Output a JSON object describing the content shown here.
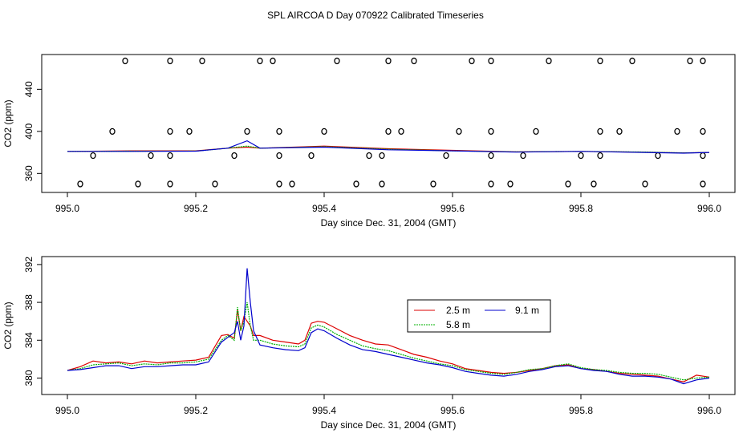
{
  "page_title": "SPL AIRCOA D  Day 070922  Calibrated Timeseries",
  "colors": {
    "red": "#dd0000",
    "green": "#00b000",
    "blue": "#0000cc",
    "black": "#000000"
  },
  "chart_data": [
    {
      "type": "scatter",
      "title": "",
      "xlabel": "Day since Dec. 31, 2004 (GMT)",
      "ylabel": "CO2 (ppm)",
      "xlim": [
        995.0,
        996.0
      ],
      "ylim": [
        345,
        470
      ],
      "xticks": [
        995.0,
        995.2,
        995.4,
        995.6,
        995.8,
        996.0
      ],
      "xtick_labels": [
        "995.0",
        "995.2",
        "995.4",
        "995.6",
        "995.8",
        "996.0"
      ],
      "yticks": [
        360,
        400,
        440
      ],
      "ytick_labels": [
        "360",
        "400",
        "440"
      ],
      "points": [
        [
          995.09,
          467
        ],
        [
          995.16,
          467
        ],
        [
          995.21,
          467
        ],
        [
          995.3,
          467
        ],
        [
          995.32,
          467
        ],
        [
          995.42,
          467
        ],
        [
          995.5,
          467
        ],
        [
          995.54,
          467
        ],
        [
          995.63,
          467
        ],
        [
          995.66,
          467
        ],
        [
          995.75,
          467
        ],
        [
          995.83,
          467
        ],
        [
          995.88,
          467
        ],
        [
          995.97,
          467
        ],
        [
          995.99,
          467
        ],
        [
          995.07,
          400
        ],
        [
          995.16,
          400
        ],
        [
          995.19,
          400
        ],
        [
          995.28,
          400
        ],
        [
          995.33,
          400
        ],
        [
          995.4,
          400
        ],
        [
          995.5,
          400
        ],
        [
          995.52,
          400
        ],
        [
          995.61,
          400
        ],
        [
          995.66,
          400
        ],
        [
          995.73,
          400
        ],
        [
          995.83,
          400
        ],
        [
          995.86,
          400
        ],
        [
          995.95,
          400
        ],
        [
          995.99,
          400
        ],
        [
          995.04,
          377
        ],
        [
          995.13,
          377
        ],
        [
          995.16,
          377
        ],
        [
          995.26,
          377
        ],
        [
          995.33,
          377
        ],
        [
          995.38,
          377
        ],
        [
          995.47,
          377
        ],
        [
          995.49,
          377
        ],
        [
          995.59,
          377
        ],
        [
          995.66,
          377
        ],
        [
          995.71,
          377
        ],
        [
          995.8,
          377
        ],
        [
          995.83,
          377
        ],
        [
          995.92,
          377
        ],
        [
          995.99,
          377
        ],
        [
          995.02,
          350
        ],
        [
          995.11,
          350
        ],
        [
          995.16,
          350
        ],
        [
          995.23,
          350
        ],
        [
          995.33,
          350
        ],
        [
          995.35,
          350
        ],
        [
          995.45,
          350
        ],
        [
          995.49,
          350
        ],
        [
          995.57,
          350
        ],
        [
          995.66,
          350
        ],
        [
          995.69,
          350
        ],
        [
          995.78,
          350
        ],
        [
          995.82,
          350
        ],
        [
          995.9,
          350
        ],
        [
          995.99,
          350
        ]
      ],
      "series": [
        {
          "name": "2.5 m",
          "color": "#dd0000",
          "x": [
            995.0,
            995.1,
            995.2,
            995.25,
            995.28,
            995.3,
            995.4,
            995.5,
            995.6,
            995.7,
            995.8,
            995.9,
            995.96,
            996.0
          ],
          "values": [
            381,
            381.5,
            381.5,
            384,
            385,
            384,
            386,
            383.5,
            382,
            380.5,
            381,
            380.2,
            379.5,
            380
          ]
        },
        {
          "name": "5.8 m",
          "color": "#00b000",
          "x": [
            995.0,
            995.1,
            995.2,
            995.25,
            995.28,
            995.3,
            995.4,
            995.5,
            995.6,
            995.7,
            995.8,
            995.9,
            995.96,
            996.0
          ],
          "values": [
            381,
            381.2,
            381.3,
            384,
            386,
            384,
            385.5,
            383,
            381.5,
            380.5,
            381,
            380.4,
            379.5,
            380
          ]
        },
        {
          "name": "9.1 m",
          "color": "#0000cc",
          "x": [
            995.0,
            995.1,
            995.2,
            995.25,
            995.28,
            995.3,
            995.4,
            995.5,
            995.6,
            995.7,
            995.8,
            995.9,
            995.96,
            996.0
          ],
          "values": [
            381,
            381,
            381.2,
            384,
            391,
            384,
            385,
            382.5,
            381.5,
            380.3,
            381,
            380,
            379.3,
            380
          ]
        }
      ]
    },
    {
      "type": "line",
      "title": "",
      "xlabel": "Day since Dec. 31, 2004 (GMT)",
      "ylabel": "CO2 (ppm)",
      "xlim": [
        995.0,
        996.0
      ],
      "ylim": [
        378.6,
        392.5
      ],
      "xticks": [
        995.0,
        995.2,
        995.4,
        995.6,
        995.8,
        996.0
      ],
      "xtick_labels": [
        "995.0",
        "995.2",
        "995.4",
        "995.6",
        "995.8",
        "996.0"
      ],
      "yticks": [
        380,
        384,
        388,
        392
      ],
      "ytick_labels": [
        "380",
        "384",
        "388",
        "392"
      ],
      "legend": {
        "position": "right-center",
        "entries": [
          "2.5 m",
          "5.8 m",
          "9.1 m"
        ]
      },
      "x": [
        995.0,
        995.02,
        995.04,
        995.06,
        995.08,
        995.1,
        995.12,
        995.14,
        995.16,
        995.18,
        995.2,
        995.22,
        995.24,
        995.25,
        995.26,
        995.265,
        995.27,
        995.275,
        995.28,
        995.285,
        995.29,
        995.3,
        995.32,
        995.34,
        995.36,
        995.37,
        995.38,
        995.39,
        995.4,
        995.42,
        995.44,
        995.46,
        995.48,
        995.5,
        995.52,
        995.54,
        995.56,
        995.58,
        995.6,
        995.62,
        995.64,
        995.66,
        995.68,
        995.7,
        995.72,
        995.74,
        995.76,
        995.78,
        995.8,
        995.82,
        995.84,
        995.86,
        995.88,
        995.9,
        995.92,
        995.94,
        995.96,
        995.98,
        996.0
      ],
      "series": [
        {
          "name": "2.5 m",
          "color": "#dd0000",
          "values": [
            380.8,
            381.2,
            381.8,
            381.6,
            381.7,
            381.5,
            381.8,
            381.6,
            381.7,
            381.8,
            381.9,
            382.2,
            384.5,
            384.6,
            384.2,
            387.2,
            385.0,
            386.5,
            386.0,
            385.5,
            384.5,
            384.5,
            384.0,
            383.8,
            383.6,
            384.0,
            385.8,
            386.0,
            385.9,
            385.2,
            384.5,
            384.0,
            383.6,
            383.5,
            383.0,
            382.5,
            382.2,
            381.8,
            381.5,
            381.0,
            380.8,
            380.6,
            380.5,
            380.6,
            380.8,
            381.0,
            381.3,
            381.4,
            381.0,
            380.9,
            380.7,
            380.5,
            380.4,
            380.3,
            380.2,
            379.9,
            379.6,
            380.3,
            380.1
          ]
        },
        {
          "name": "5.8 m",
          "color": "#00b000",
          "values": [
            380.8,
            381.0,
            381.4,
            381.5,
            381.6,
            381.3,
            381.5,
            381.4,
            381.6,
            381.6,
            381.7,
            382.0,
            384.0,
            384.5,
            384.0,
            387.5,
            385.0,
            386.0,
            388.0,
            385.5,
            384.0,
            384.0,
            383.6,
            383.4,
            383.3,
            383.6,
            385.3,
            385.6,
            385.4,
            384.6,
            384.0,
            383.4,
            383.1,
            382.9,
            382.5,
            382.1,
            381.8,
            381.5,
            381.3,
            380.9,
            380.7,
            380.5,
            380.4,
            380.6,
            380.9,
            381.0,
            381.3,
            381.5,
            381.1,
            380.9,
            380.8,
            380.6,
            380.5,
            380.5,
            380.4,
            380.1,
            379.8,
            380.0,
            380.1
          ]
        },
        {
          "name": "9.1 m",
          "color": "#0000cc",
          "values": [
            380.8,
            380.9,
            381.1,
            381.3,
            381.3,
            381.0,
            381.2,
            381.2,
            381.3,
            381.4,
            381.4,
            381.7,
            383.8,
            384.3,
            384.8,
            386.0,
            384.0,
            385.5,
            391.6,
            388.0,
            385.0,
            383.5,
            383.2,
            383.0,
            382.9,
            383.2,
            384.8,
            385.2,
            385.0,
            384.2,
            383.5,
            383.0,
            382.8,
            382.5,
            382.2,
            381.9,
            381.6,
            381.4,
            381.1,
            380.7,
            380.5,
            380.3,
            380.2,
            380.4,
            380.7,
            380.9,
            381.2,
            381.3,
            381.0,
            380.8,
            380.7,
            380.4,
            380.2,
            380.2,
            380.1,
            379.9,
            379.4,
            379.8,
            380.0
          ]
        }
      ]
    }
  ]
}
